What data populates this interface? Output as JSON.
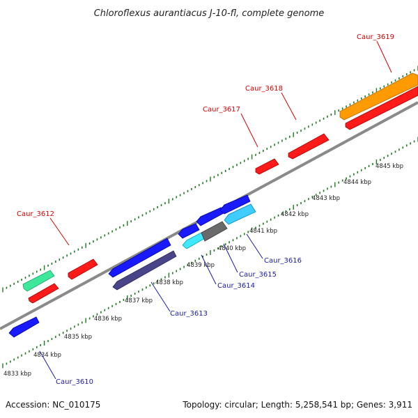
{
  "title": "Chloroflexus aurantiacus J-10-fl, complete genome",
  "footer": {
    "accession": "Accession: NC_010175",
    "summary": "Topology: circular; Length: 5,258,541 bp; Genes: 3,911"
  },
  "colors": {
    "backbone": "#8a8a8a",
    "tick": "#1f7a1f",
    "label_forward": "#d40000",
    "label_reverse": "#1a1aa6"
  },
  "kbp_labels": [
    "4833 kbp",
    "4834 kbp",
    "4835 kbp",
    "4836 kbp",
    "4837 kbp",
    "4838 kbp",
    "4839 kbp",
    "4840 kbp",
    "4841 kbp",
    "4842 kbp",
    "4843 kbp",
    "4844 kbp",
    "4845 kbp"
  ],
  "genes": [
    {
      "name": "Caur_3612",
      "strand": "+",
      "color": "#ff1a1a",
      "labeled": true
    },
    {
      "name": "Caur_3617",
      "strand": "+",
      "color": "#ff1a1a",
      "labeled": true
    },
    {
      "name": "Caur_3618",
      "strand": "+",
      "color": "#ff1a1a",
      "labeled": true
    },
    {
      "name": "Caur_3619",
      "strand": "+",
      "color": "#ff9a00",
      "labeled": true
    },
    {
      "name": "Caur_3610",
      "strand": "-",
      "color": "#1a1aff",
      "labeled": true
    },
    {
      "name": "Caur_3613",
      "strand": "-",
      "color": "#1a1aff",
      "labeled": true
    },
    {
      "name": "Caur_3614",
      "strand": "-",
      "color": "#40ccff",
      "labeled": true
    },
    {
      "name": "Caur_3615",
      "strand": "-",
      "color": "#6a6a6a",
      "labeled": true
    },
    {
      "name": "Caur_3616",
      "strand": "-",
      "color": "#40ccff",
      "labeled": true
    }
  ]
}
